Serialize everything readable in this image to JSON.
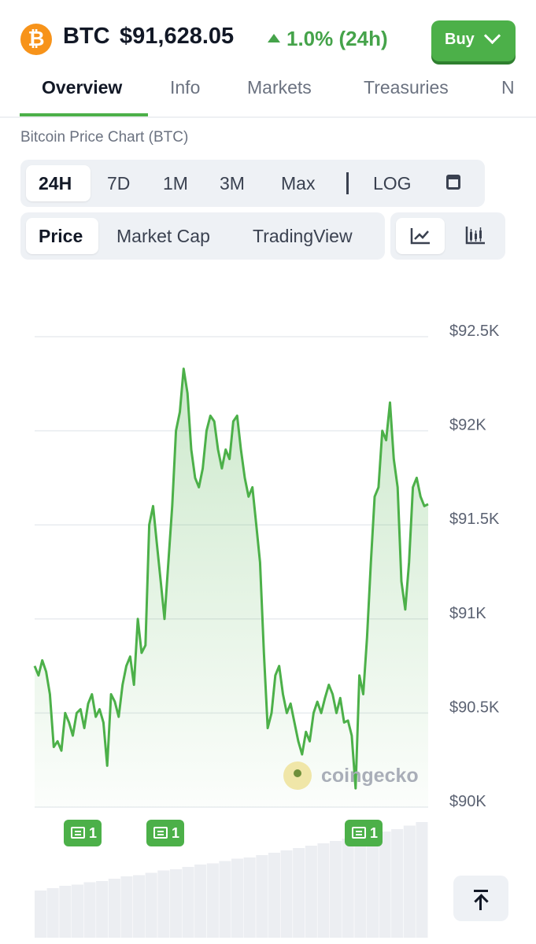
{
  "header": {
    "coin_symbol_glyph": "₿",
    "ticker": "BTC",
    "price": "$91,628.05",
    "change": "1.0% (24h)",
    "change_color": "#45a34a",
    "buy_label": "Buy"
  },
  "tabs": [
    {
      "label": "Overview",
      "active": true
    },
    {
      "label": "Info"
    },
    {
      "label": "Markets"
    },
    {
      "label": "Treasuries"
    },
    {
      "label": "N"
    }
  ],
  "chart_title": "Bitcoin Price Chart (BTC)",
  "ranges": [
    "24H",
    "7D",
    "1M",
    "3M",
    "Max"
  ],
  "log_label": "LOG",
  "chart_types": [
    "Price",
    "Market Cap",
    "TradingView"
  ],
  "view_icons": [
    "line-chart-icon",
    "candlestick-icon"
  ],
  "watermark": "coingecko",
  "news_badges": [
    {
      "count": "1"
    },
    {
      "count": "1"
    },
    {
      "count": "1"
    }
  ],
  "chart_data": {
    "type": "area",
    "title": "Bitcoin Price Chart (BTC)",
    "y_tick_labels": [
      "$92.5K",
      "$92K",
      "$91.5K",
      "$91K",
      "$90.5K",
      "$90K"
    ],
    "y_ticks": [
      92500,
      92000,
      91500,
      91000,
      90500,
      90000
    ],
    "ylim": [
      90000,
      92500
    ],
    "grid": true,
    "line_color": "#4cb049",
    "series": [
      {
        "values": [
          90750,
          90700,
          90780,
          90720,
          90600,
          90320,
          90350,
          90300,
          90500,
          90450,
          90380,
          90500,
          90520,
          90420,
          90550,
          90600,
          90480,
          90520,
          90450,
          90220,
          90600,
          90560,
          90480,
          90650,
          90750,
          90800,
          90650,
          91000,
          90820,
          90860,
          91500,
          91600,
          91400,
          91200,
          91000,
          91300,
          91600,
          92000,
          92100,
          92330,
          92200,
          91900,
          91750,
          91700,
          91800,
          92000,
          92080,
          92050,
          91900,
          91800,
          91900,
          91850,
          92050,
          92080,
          91900,
          91750,
          91650,
          91700,
          91500,
          91300,
          90820,
          90420,
          90500,
          90700,
          90750,
          90600,
          90500,
          90550,
          90450,
          90350,
          90280,
          90400,
          90350,
          90500,
          90560,
          90500,
          90580,
          90650,
          90600,
          90500,
          90580,
          90450,
          90460,
          90380,
          90100,
          90700,
          90600,
          90900,
          91300,
          91650,
          91700,
          92000,
          91950,
          92150,
          91850,
          91700,
          91200,
          91050,
          91300,
          91700,
          91750,
          91650,
          91600,
          91610
        ]
      }
    ],
    "volume_series": {
      "values": [
        40,
        42,
        44,
        45,
        47,
        48,
        50,
        52,
        53,
        55,
        57,
        58,
        60,
        62,
        63,
        65,
        67,
        68,
        70,
        72,
        74,
        76,
        78,
        80,
        82,
        84,
        86,
        88,
        90,
        92,
        95,
        98
      ]
    },
    "news_events": 3
  }
}
